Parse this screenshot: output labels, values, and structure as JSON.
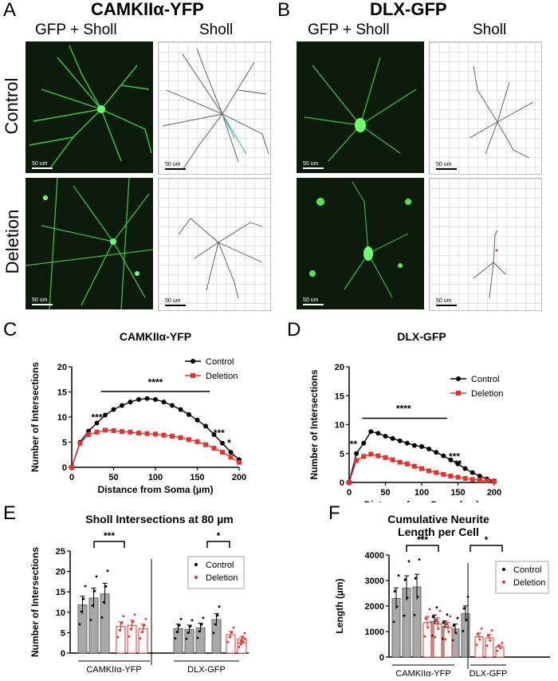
{
  "panels": {
    "A": {
      "letter": "A",
      "title": "CAMKIIα-YFP",
      "col1": "GFP + Sholl",
      "col2": "Sholl"
    },
    "B": {
      "letter": "B",
      "title": "DLX-GFP",
      "col1": "GFP + Sholl",
      "col2": "Sholl"
    },
    "row_labels": [
      "Control",
      "Deletion"
    ],
    "scale_bar": "50 um",
    "C": {
      "letter": "C"
    },
    "D": {
      "letter": "D"
    },
    "E": {
      "letter": "E"
    },
    "F": {
      "letter": "F"
    }
  },
  "colors": {
    "control": "#000000",
    "deletion": "#e8312b",
    "gray_bar": "#a8a8a8",
    "neuron_green": "#3ee03e"
  },
  "chart_data": [
    {
      "id": "C",
      "type": "line",
      "title": "CAMKIIα-YFP",
      "xlabel": "Distance from Soma (µm)",
      "ylabel": "Number of Intersections",
      "xlim": [
        0,
        200
      ],
      "ylim": [
        0,
        20
      ],
      "xticks": [
        0,
        50,
        100,
        150,
        200
      ],
      "yticks": [
        0,
        5,
        10,
        15,
        20
      ],
      "x": [
        0,
        10,
        20,
        30,
        40,
        50,
        60,
        70,
        80,
        90,
        100,
        110,
        120,
        130,
        140,
        150,
        160,
        170,
        180,
        190,
        200
      ],
      "series": [
        {
          "name": "Control",
          "values": [
            0,
            5.0,
            7.2,
            8.8,
            10.4,
            11.5,
            12.3,
            13.0,
            13.5,
            13.7,
            13.5,
            13.0,
            12.3,
            11.5,
            10.5,
            9.4,
            8.2,
            6.5,
            4.8,
            3.0,
            1.5
          ]
        },
        {
          "name": "Deletion",
          "values": [
            0,
            4.8,
            6.5,
            7.0,
            7.4,
            7.3,
            7.1,
            7.0,
            6.8,
            6.7,
            6.6,
            6.4,
            6.2,
            5.9,
            5.5,
            5.1,
            4.5,
            3.8,
            3.0,
            2.0,
            1.0
          ]
        }
      ],
      "annotations": [
        {
          "text": "***",
          "x": 30,
          "y": 9.3
        },
        {
          "text": "****",
          "x": 100,
          "y": 16.3
        },
        {
          "text": "***",
          "x": 176,
          "y": 6.2
        },
        {
          "text": "*",
          "x": 188,
          "y": 4.2
        }
      ],
      "sig_bar": {
        "x1": 35,
        "x2": 165,
        "y": 15.1
      },
      "legend": "top-right"
    },
    {
      "id": "D",
      "type": "line",
      "title": "DLX-GFP",
      "xlabel": "Distance from Soma (µm)",
      "ylabel": "Number of Intersections",
      "xlim": [
        0,
        200
      ],
      "ylim": [
        0,
        20
      ],
      "xticks": [
        0,
        50,
        100,
        150,
        200
      ],
      "yticks": [
        0,
        5,
        10,
        15,
        20
      ],
      "x": [
        0,
        10,
        20,
        30,
        40,
        50,
        60,
        70,
        80,
        90,
        100,
        110,
        120,
        130,
        140,
        150,
        160,
        170,
        180,
        190,
        200
      ],
      "series": [
        {
          "name": "Control",
          "values": [
            0,
            5.0,
            6.8,
            8.8,
            8.5,
            8.0,
            7.6,
            7.2,
            6.8,
            6.4,
            6.2,
            5.8,
            5.2,
            4.6,
            3.9,
            3.2,
            2.4,
            1.7,
            1.1,
            0.6,
            0.3
          ]
        },
        {
          "name": "Deletion",
          "values": [
            0,
            3.8,
            4.5,
            4.9,
            4.6,
            4.3,
            3.9,
            3.5,
            3.2,
            2.8,
            2.4,
            2.0,
            1.7,
            1.4,
            1.1,
            0.9,
            0.7,
            0.5,
            0.4,
            0.3,
            0.2
          ]
        }
      ],
      "annotations": [
        {
          "text": "**",
          "x": 6,
          "y": 6.1
        },
        {
          "text": "****",
          "x": 75,
          "y": 12.2
        },
        {
          "text": "***",
          "x": 145,
          "y": 3.9
        },
        {
          "text": "**",
          "x": 150,
          "y": 2.7
        }
      ],
      "sig_bar": {
        "x1": 18,
        "x2": 135,
        "y": 11.1
      },
      "legend": "top-right"
    },
    {
      "id": "E",
      "type": "bar",
      "title": "Sholl Intersections at 80 µm",
      "ylabel": "Number of Intersections",
      "ylim": [
        0,
        25
      ],
      "yticks": [
        0,
        5,
        10,
        15,
        20,
        25
      ],
      "groups": [
        "CAMKIIα-YFP",
        "DLX-GFP"
      ],
      "series": [
        {
          "name": "Control",
          "values": [
            11.8,
            13.5,
            14.5,
            6.0,
            5.8,
            6.2,
            8.2
          ]
        },
        {
          "name": "Deletion",
          "values": [
            6.5,
            6.8,
            6.0,
            4.5,
            3.5,
            2.5
          ]
        }
      ],
      "significance": [
        {
          "group": 0,
          "text": "***"
        },
        {
          "group": 1,
          "text": "*"
        }
      ],
      "legend": "right"
    },
    {
      "id": "F",
      "type": "bar",
      "title": "Cumulative Neurite\nLength per Cell",
      "ylabel": "Length (µm)",
      "ylim": [
        0,
        4000
      ],
      "yticks": [
        0,
        1000,
        2000,
        3000,
        4000
      ],
      "groups": [
        "CAMKIIα-YFP",
        "DLX-GFP"
      ],
      "series": [
        {
          "name": "Control",
          "values": [
            2300,
            2700,
            2750,
            1400,
            1200,
            1100,
            1700
          ]
        },
        {
          "name": "Deletion",
          "values": [
            1350,
            1300,
            1150,
            800,
            750,
            400
          ]
        }
      ],
      "significance": [
        {
          "group": 0,
          "text": "***"
        },
        {
          "group": 1,
          "text": "*"
        }
      ],
      "legend": "right"
    }
  ]
}
